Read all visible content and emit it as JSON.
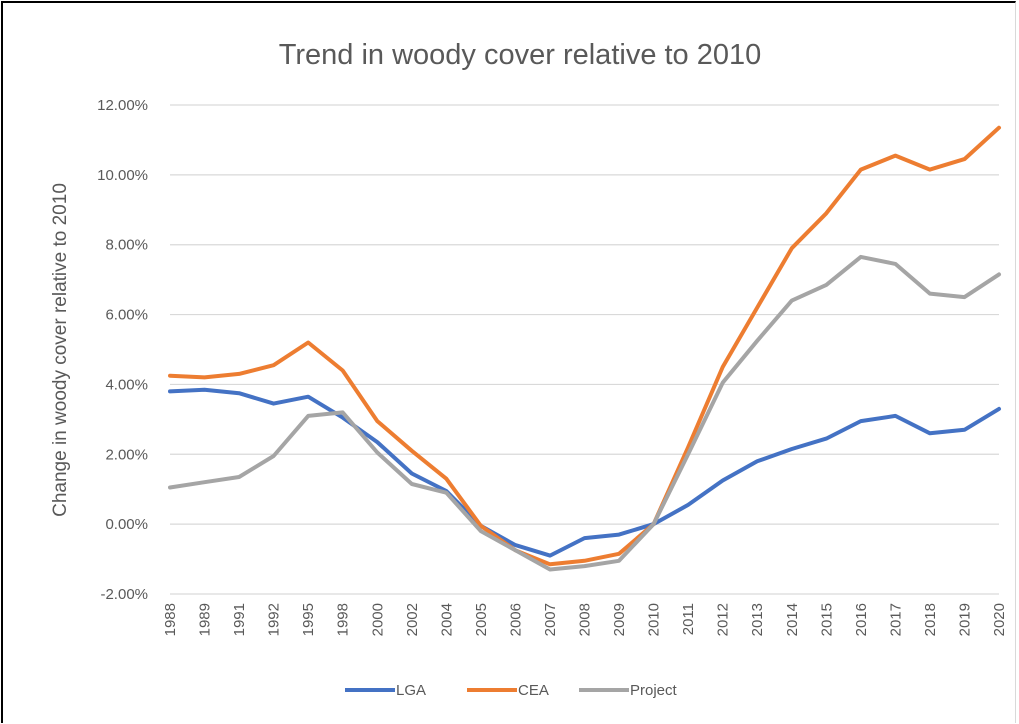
{
  "chart_data": {
    "type": "line",
    "title": "Trend in woody cover relative to 2010",
    "xlabel": "",
    "ylabel": "Change in woody cover relative to 2010",
    "ylim": [
      -0.02,
      0.12
    ],
    "yticks": [
      "-2.00%",
      "0.00%",
      "2.00%",
      "4.00%",
      "6.00%",
      "8.00%",
      "10.00%",
      "12.00%"
    ],
    "grid": true,
    "legend_position": "bottom",
    "categories": [
      "1988",
      "1989",
      "1991",
      "1992",
      "1995",
      "1998",
      "2000",
      "2002",
      "2004",
      "2005",
      "2006",
      "2007",
      "2008",
      "2009",
      "2010",
      "2011",
      "2012",
      "2013",
      "2014",
      "2015",
      "2016",
      "2017",
      "2018",
      "2019",
      "2020"
    ],
    "series": [
      {
        "name": "LGA",
        "color": "#4472c4",
        "values": [
          0.038,
          0.0385,
          0.0375,
          0.0345,
          0.0365,
          0.0305,
          0.0235,
          0.0145,
          0.0095,
          -0.0005,
          -0.006,
          -0.009,
          -0.004,
          -0.003,
          0.0,
          0.0055,
          0.0125,
          0.018,
          0.0215,
          0.0245,
          0.0295,
          0.031,
          0.026,
          0.027,
          0.033
        ]
      },
      {
        "name": "CEA",
        "color": "#ed7d31",
        "values": [
          0.0425,
          0.042,
          0.043,
          0.0455,
          0.052,
          0.044,
          0.0295,
          0.021,
          0.013,
          -0.0005,
          -0.0075,
          -0.0115,
          -0.0105,
          -0.0085,
          0.0,
          0.022,
          0.045,
          0.062,
          0.079,
          0.089,
          0.1015,
          0.1055,
          0.1015,
          0.1045,
          0.1135
        ]
      },
      {
        "name": "Project",
        "color": "#a5a5a5",
        "values": [
          0.0105,
          0.012,
          0.0135,
          0.0195,
          0.031,
          0.032,
          0.0205,
          0.0115,
          0.009,
          -0.002,
          -0.0075,
          -0.013,
          -0.012,
          -0.0105,
          0.0,
          0.02,
          0.0405,
          0.0525,
          0.064,
          0.0685,
          0.0765,
          0.0745,
          0.066,
          0.065,
          0.0715
        ]
      }
    ]
  }
}
